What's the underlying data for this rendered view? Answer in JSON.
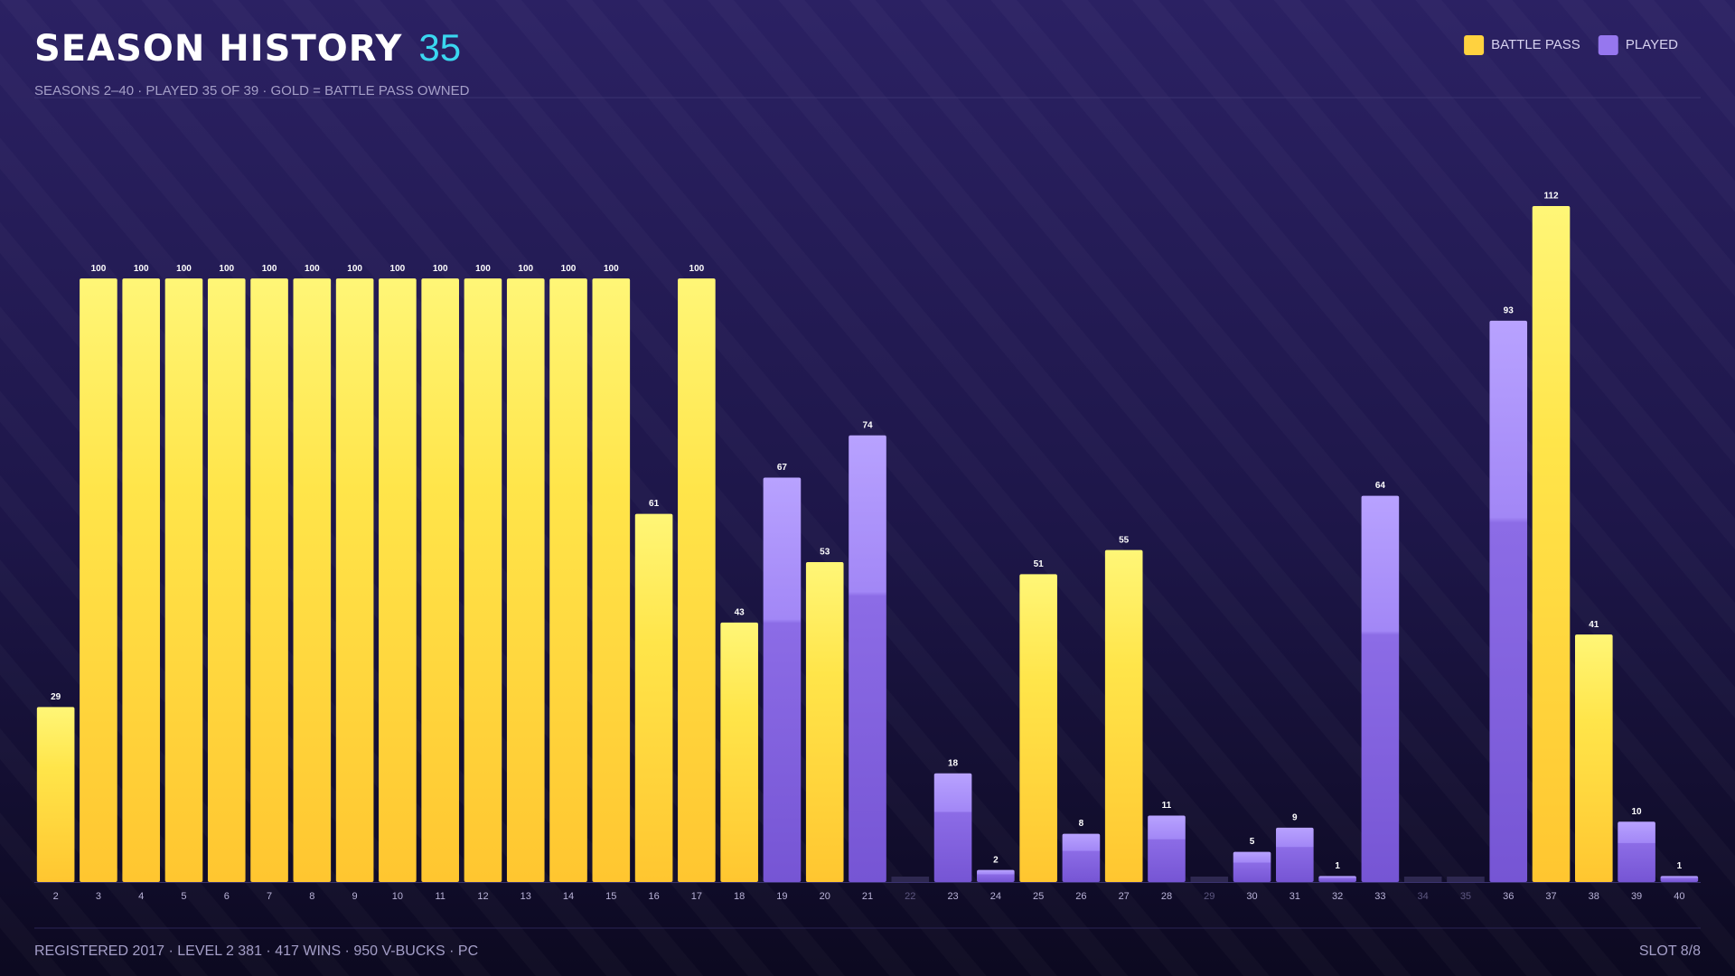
{
  "header": {
    "title": "SEASON HISTORY",
    "count": "35",
    "subtitle": "SEASONS 2–40 · PLAYED 35 OF 39 · GOLD = BATTLE PASS OWNED"
  },
  "footer": {
    "info": "REGISTERED 2017 · LEVEL 2 381 · 417 WINS · 950 V-BUCKS · PC",
    "slot": "SLOT 8/8"
  },
  "chart_data": {
    "type": "bar",
    "legend": "top-right",
    "categories": [
      "2",
      "3",
      "4",
      "5",
      "6",
      "7",
      "8",
      "9",
      "10",
      "11",
      "12",
      "13",
      "14",
      "15",
      "16",
      "17",
      "18",
      "19",
      "20",
      "21",
      "22",
      "23",
      "24",
      "25",
      "26",
      "27",
      "28",
      "29",
      "30",
      "31",
      "32",
      "33",
      "34",
      "35",
      "36",
      "37",
      "38",
      "39",
      "40"
    ],
    "series": [
      {
        "name": "BATTLE PASS",
        "color": "#ffd23f",
        "values": [
          29,
          100,
          100,
          100,
          100,
          100,
          100,
          100,
          100,
          100,
          100,
          100,
          100,
          100,
          61,
          100,
          43,
          null,
          53,
          null,
          null,
          null,
          null,
          51,
          null,
          55,
          null,
          null,
          null,
          null,
          null,
          null,
          null,
          null,
          null,
          112,
          41,
          null,
          null
        ]
      },
      {
        "name": "PLAYED",
        "color": "#9677ee",
        "values": [
          null,
          null,
          null,
          null,
          null,
          null,
          null,
          null,
          null,
          null,
          null,
          null,
          null,
          null,
          null,
          null,
          null,
          67,
          null,
          74,
          null,
          18,
          2,
          null,
          8,
          null,
          11,
          null,
          5,
          9,
          1,
          64,
          null,
          null,
          93,
          null,
          null,
          10,
          1
        ]
      }
    ]
  }
}
